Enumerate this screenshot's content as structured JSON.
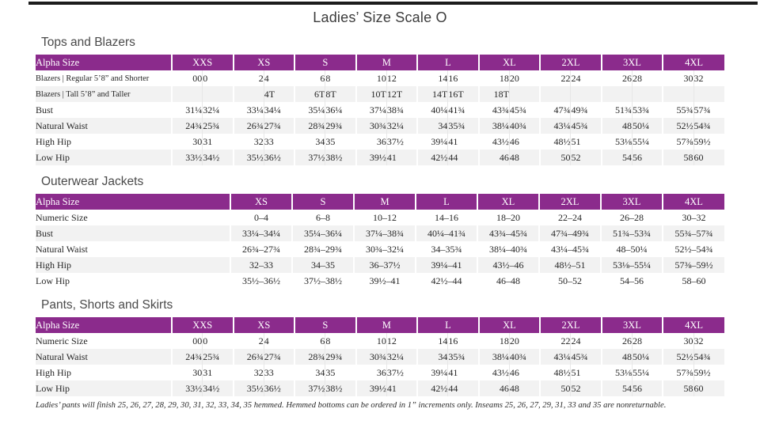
{
  "page": {
    "title": "Ladies’ Size Scale O",
    "footnote": "Ladies’ pants will finish 25, 26, 27, 28, 29, 30, 31, 32, 33, 34, 35 hemmed. Hemmed bottoms can be ordered in 1” increments only. Inseams 25, 26, 27, 29, 31, 33 and 35 are nonreturnable."
  },
  "colors": {
    "header_purple": "#8b2b8c",
    "row_stripe": "#f2f2f2",
    "top_rule": "#1c1c1c"
  },
  "tables": [
    {
      "section_title": "Tops and Blazers",
      "layout": "paired",
      "header_label": "Alpha Size",
      "groups": [
        "XXS",
        "XS",
        "S",
        "M",
        "L",
        "XL",
        "2XL",
        "3XL",
        "4XL"
      ],
      "rows": [
        {
          "label": "Blazers  |  Regular 5’8” and Shorter",
          "values": [
            "00",
            "0",
            "2",
            "4",
            "6",
            "8",
            "10",
            "12",
            "14",
            "16",
            "18",
            "20",
            "22",
            "24",
            "26",
            "28",
            "30",
            "32"
          ]
        },
        {
          "label": "Blazers  |  Tall 5’8” and Taller",
          "values": [
            "",
            "",
            "",
            "4T",
            "6T",
            "8T",
            "10T",
            "12T",
            "14T",
            "16T",
            "18T",
            "",
            "",
            "",
            "",
            "",
            "",
            ""
          ]
        },
        {
          "label": "Bust",
          "values": [
            "31¼",
            "32¼",
            "33¼",
            "34¼",
            "35¼",
            "36¼",
            "37¼",
            "38¾",
            "40¼",
            "41¾",
            "43¾",
            "45¾",
            "47¾",
            "49¾",
            "51¾",
            "53¾",
            "55¾",
            "57¾"
          ]
        },
        {
          "label": "Natural Waist",
          "values": [
            "24¾",
            "25¾",
            "26¾",
            "27¾",
            "28¾",
            "29¾",
            "30¾",
            "32¼",
            "34",
            "35¾",
            "38¼",
            "40¾",
            "43¼",
            "45¾",
            "48",
            "50¼",
            "52½",
            "54¾"
          ]
        },
        {
          "label": "High Hip",
          "values": [
            "30",
            "31",
            "32",
            "33",
            "34",
            "35",
            "36",
            "37½",
            "39¼",
            "41",
            "43½",
            "46",
            "48½",
            "51",
            "53⅛",
            "55¼",
            "57⅜",
            "59½"
          ]
        },
        {
          "label": "Low Hip",
          "values": [
            "33½",
            "34½",
            "35½",
            "36½",
            "37½",
            "38½",
            "39½",
            "41",
            "42½",
            "44",
            "46",
            "48",
            "50",
            "52",
            "54",
            "56",
            "58",
            "60"
          ]
        }
      ]
    },
    {
      "section_title": "Outerwear Jackets",
      "layout": "single",
      "header_label": "Alpha Size",
      "groups": [
        "XS",
        "S",
        "M",
        "L",
        "XL",
        "2XL",
        "3XL",
        "4XL"
      ],
      "rows": [
        {
          "label": "Numeric Size",
          "values": [
            "0–4",
            "6–8",
            "10–12",
            "14–16",
            "18–20",
            "22–24",
            "26–28",
            "30–32"
          ]
        },
        {
          "label": "Bust",
          "values": [
            "33¼–34¼",
            "35¼–36¼",
            "37¼–38¾",
            "40¼–41¾",
            "43¾–45¾",
            "47¾–49¾",
            "51¾–53¾",
            "55¾–57¾"
          ]
        },
        {
          "label": "Natural Waist",
          "values": [
            "26¾–27¾",
            "28¾–29¾",
            "30¾–32¼",
            "34–35¾",
            "38¼–40¾",
            "43¼–45¾",
            "48–50¼",
            "52½–54¾"
          ]
        },
        {
          "label": "High Hip",
          "values": [
            "32–33",
            "34–35",
            "36–37½",
            "39¼–41",
            "43½–46",
            "48½–51",
            "53⅛–55¼",
            "57⅜–59½"
          ]
        },
        {
          "label": "Low Hip",
          "values": [
            "35½–36½",
            "37½–38½",
            "39½–41",
            "42½–44",
            "46–48",
            "50–52",
            "54–56",
            "58–60"
          ]
        }
      ]
    },
    {
      "section_title": "Pants, Shorts and Skirts",
      "layout": "paired",
      "header_label": "Alpha Size",
      "groups": [
        "XXS",
        "XS",
        "S",
        "M",
        "L",
        "XL",
        "2XL",
        "3XL",
        "4XL"
      ],
      "rows": [
        {
          "label": "Numeric Size",
          "values": [
            "00",
            "0",
            "2",
            "4",
            "6",
            "8",
            "10",
            "12",
            "14",
            "16",
            "18",
            "20",
            "22",
            "24",
            "26",
            "28",
            "30",
            "32"
          ]
        },
        {
          "label": "Natural Waist",
          "values": [
            "24¾",
            "25¾",
            "26¾",
            "27¾",
            "28¾",
            "29¾",
            "30¾",
            "32¼",
            "34",
            "35¾",
            "38¼",
            "40¾",
            "43¼",
            "45¾",
            "48",
            "50¼",
            "52½",
            "54¾"
          ]
        },
        {
          "label": "High Hip",
          "values": [
            "30",
            "31",
            "32",
            "33",
            "34",
            "35",
            "36",
            "37½",
            "39¼",
            "41",
            "43½",
            "46",
            "48½",
            "51",
            "53⅛",
            "55¼",
            "57⅜",
            "59½"
          ]
        },
        {
          "label": "Low Hip",
          "values": [
            "33½",
            "34½",
            "35½",
            "36½",
            "37½",
            "38½",
            "39½",
            "41",
            "42½",
            "44",
            "46",
            "48",
            "50",
            "52",
            "54",
            "56",
            "58",
            "60"
          ]
        }
      ]
    }
  ]
}
